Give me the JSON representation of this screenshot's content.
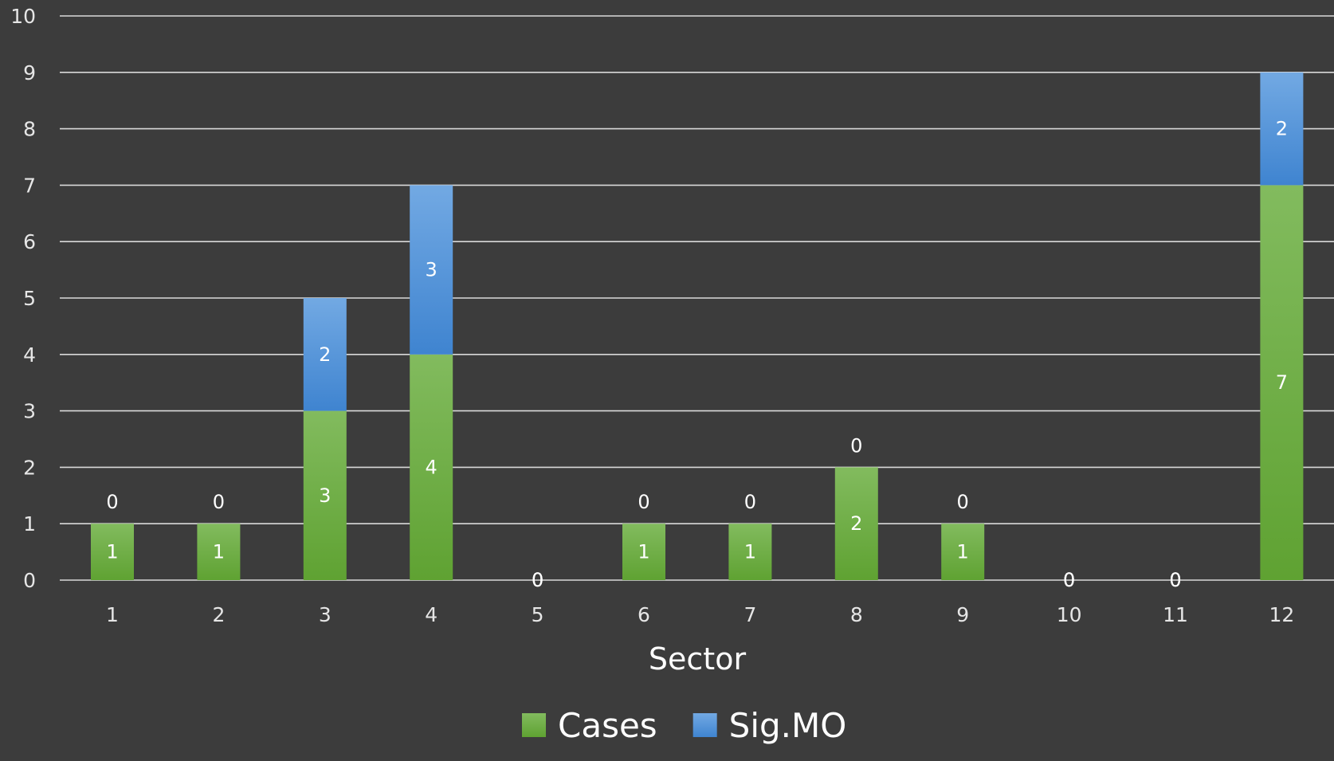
{
  "chart_data": {
    "type": "bar",
    "stacked": true,
    "categories": [
      "1",
      "2",
      "3",
      "4",
      "5",
      "6",
      "7",
      "8",
      "9",
      "10",
      "11",
      "12"
    ],
    "series": [
      {
        "name": "Cases",
        "values": [
          1,
          1,
          3,
          4,
          0,
          1,
          1,
          2,
          1,
          0,
          0,
          7
        ],
        "color": "#6aab3c"
      },
      {
        "name": "Sig.MO",
        "values": [
          0,
          0,
          2,
          3,
          0,
          0,
          0,
          0,
          0,
          0,
          0,
          2
        ],
        "color": "#4f8fd6"
      }
    ],
    "title": "",
    "xlabel": "Sector",
    "ylabel": "",
    "ylim": [
      0,
      10
    ],
    "yticks": [
      0,
      1,
      2,
      3,
      4,
      5,
      6,
      7,
      8,
      9,
      10
    ],
    "grid": true,
    "legend_position": "bottom",
    "colors": {
      "background": "#3c3c3c",
      "gridline": "#d9d9d9",
      "text": "#ffffff",
      "tick_text": "#e6e6e6"
    }
  }
}
